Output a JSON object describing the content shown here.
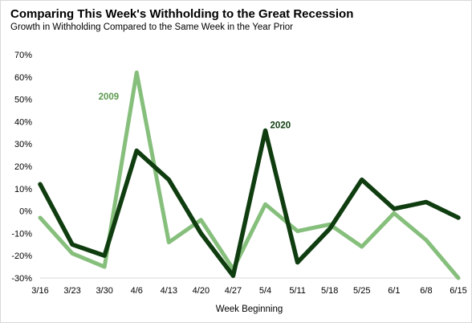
{
  "chart_data": {
    "type": "line",
    "title": "Comparing This Week's Withholding to the Great Recession",
    "subtitle": "Growth in Withholding Compared to the Same Week in the Year Prior",
    "xlabel": "Week Beginning",
    "ylabel": "",
    "categories": [
      "3/16",
      "3/23",
      "3/30",
      "4/6",
      "4/13",
      "4/20",
      "4/27",
      "5/4",
      "5/11",
      "5/18",
      "5/25",
      "6/1",
      "6/8",
      "6/15"
    ],
    "y_ticks": [
      "-30%",
      "-20%",
      "-10%",
      "0%",
      "10%",
      "20%",
      "30%",
      "40%",
      "50%",
      "60%",
      "70%"
    ],
    "ylim": [
      -30,
      70
    ],
    "grid": false,
    "legend": "inline labels",
    "series": [
      {
        "name": "2009",
        "color": "#86bf7c",
        "values": [
          -3,
          -19,
          -25,
          62,
          -14,
          -4,
          -26,
          3,
          -9,
          -6,
          -16,
          -1,
          -13,
          -30
        ]
      },
      {
        "name": "2020",
        "color": "#0f3d10",
        "values": [
          12,
          -15,
          -20,
          27,
          14,
          -10,
          -29,
          36,
          -23,
          -8,
          14,
          1,
          4,
          -3
        ]
      }
    ]
  }
}
